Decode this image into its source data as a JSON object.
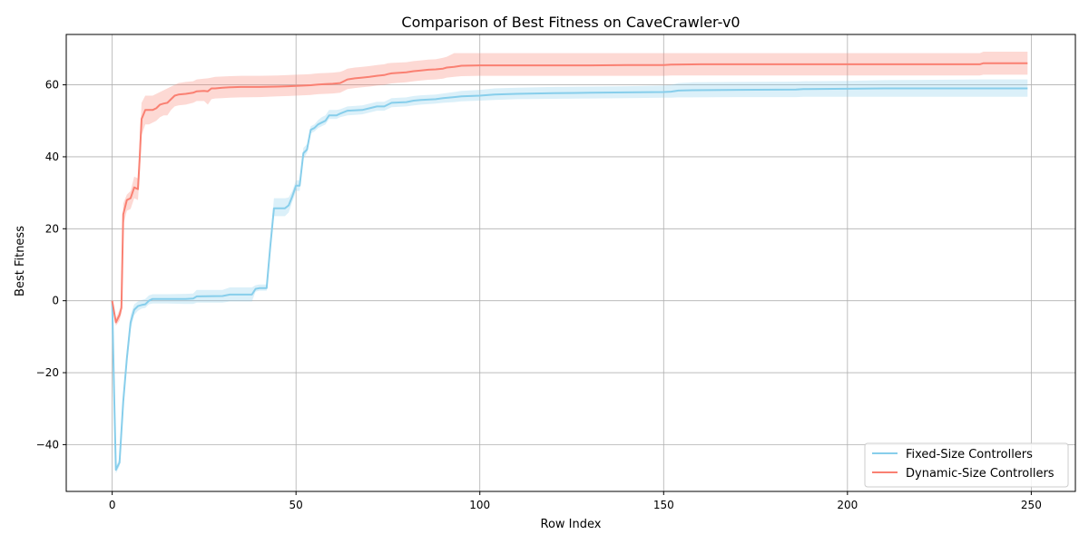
{
  "chart_data": {
    "type": "line",
    "title": "Comparison of Best Fitness on CaveCrawler-v0",
    "xlabel": "Row Index",
    "ylabel": "Best Fitness",
    "xlim": [
      -12.5,
      262
    ],
    "ylim": [
      -53,
      74
    ],
    "xticks": [
      0,
      50,
      100,
      150,
      200,
      250
    ],
    "yticks": [
      -40,
      -20,
      0,
      20,
      40,
      60
    ],
    "grid": true,
    "legend_position": "bottom-right",
    "series": [
      {
        "name": "Fixed-Size Controllers",
        "color": "#87CEEB",
        "x": [
          0,
          0.5,
          1,
          1.5,
          2,
          3,
          4,
          5,
          6,
          7,
          8,
          9,
          10,
          11,
          15,
          20,
          22,
          23,
          30,
          32,
          38,
          39,
          40,
          41,
          42,
          43,
          44,
          45,
          47,
          48,
          49,
          50,
          51,
          52,
          53,
          54,
          55,
          56,
          57,
          58,
          59,
          60,
          61,
          62,
          64,
          68,
          70,
          72,
          74,
          76,
          80,
          82,
          84,
          88,
          90,
          93,
          95,
          100,
          104,
          110,
          120,
          130,
          140,
          150,
          152,
          154,
          158,
          170,
          186,
          188,
          200,
          210,
          236,
          249
        ],
        "mean": [
          0,
          -25,
          -47,
          -46,
          -45,
          -28,
          -16,
          -6,
          -2.5,
          -1.5,
          -1.2,
          -1,
          0,
          0.5,
          0.5,
          0.5,
          0.6,
          1.2,
          1.3,
          1.7,
          1.7,
          3.3,
          3.5,
          3.5,
          3.5,
          15,
          25.7,
          25.7,
          25.7,
          26.5,
          29,
          32,
          32,
          41,
          42,
          47.5,
          48,
          49,
          49.5,
          50,
          51.5,
          51.5,
          51.5,
          52,
          52.8,
          53,
          53.5,
          54,
          54,
          55,
          55.2,
          55.6,
          55.8,
          56,
          56.3,
          56.6,
          56.8,
          57,
          57.3,
          57.5,
          57.7,
          57.8,
          57.9,
          58,
          58.1,
          58.4,
          58.5,
          58.6,
          58.7,
          58.8,
          58.9,
          59,
          59,
          59
        ],
        "lower": [
          0,
          -28,
          -48,
          -47,
          -46,
          -30,
          -18,
          -8,
          -4,
          -2.8,
          -2.2,
          -2,
          -1,
          -0.8,
          -0.8,
          -0.9,
          -0.9,
          -0.5,
          -0.5,
          -0.2,
          -0.2,
          2.5,
          2.8,
          2.8,
          2.8,
          13,
          23.5,
          23.5,
          23.5,
          24.5,
          27.5,
          30.5,
          30.5,
          39.5,
          41,
          46.5,
          47,
          48,
          48.5,
          49,
          50.5,
          50.5,
          50.5,
          51,
          51.5,
          51.8,
          52.3,
          52.8,
          52.8,
          53.8,
          54,
          54.3,
          54.5,
          54.8,
          55,
          55.2,
          55.4,
          55.6,
          55.8,
          56,
          56.1,
          56.2,
          56.3,
          56.4,
          56.4,
          56.5,
          56.5,
          56.6,
          56.6,
          56.7,
          56.7,
          56.7,
          56.7,
          56.7
        ],
        "upper": [
          0,
          -22,
          -46,
          -45,
          -44,
          -26,
          -14,
          -4,
          -1,
          -0.2,
          0.2,
          0.5,
          1.5,
          1.8,
          1.8,
          1.9,
          2,
          3,
          3,
          3.7,
          3.7,
          4.3,
          4.5,
          4.5,
          4.5,
          17,
          28.5,
          28.5,
          28.5,
          28.7,
          30.5,
          33.5,
          33.5,
          42.5,
          43.5,
          48.5,
          49,
          50.2,
          51,
          51.5,
          53,
          53,
          53,
          53.2,
          54,
          54.3,
          54.8,
          55.3,
          55.3,
          56.3,
          56.5,
          56.9,
          57.1,
          57.3,
          57.6,
          58,
          58.3,
          58.6,
          59,
          59.2,
          59.4,
          59.5,
          59.6,
          59.8,
          60,
          60.5,
          60.7,
          60.8,
          60.9,
          61,
          61.1,
          61.3,
          61.5,
          61.5
        ]
      },
      {
        "name": "Dynamic-Size Controllers",
        "color": "#FA8072",
        "x": [
          0,
          1,
          2,
          2.5,
          3,
          4,
          5,
          6,
          7,
          7.5,
          8,
          9,
          10,
          11,
          12,
          13,
          14,
          15,
          16,
          17,
          18,
          20,
          22,
          23,
          25,
          26,
          27,
          28,
          30,
          32,
          35,
          40,
          45,
          48,
          50,
          52,
          54,
          55,
          56,
          58,
          60,
          62,
          63,
          64,
          66,
          68,
          70,
          72,
          74,
          75,
          76,
          80,
          82,
          84,
          86,
          88,
          90,
          91,
          93,
          95,
          100,
          110,
          120,
          130,
          140,
          150,
          152,
          160,
          180,
          200,
          220,
          236,
          237,
          249
        ],
        "mean": [
          0,
          -6,
          -4,
          -2,
          24,
          28,
          28.5,
          31.5,
          31,
          40,
          50.5,
          53,
          53,
          53,
          53.5,
          54.5,
          54.8,
          55,
          56,
          57,
          57.3,
          57.5,
          57.8,
          58.2,
          58.3,
          58.2,
          59,
          59,
          59.2,
          59.3,
          59.4,
          59.4,
          59.5,
          59.6,
          59.7,
          59.8,
          59.9,
          60,
          60.1,
          60.2,
          60.3,
          60.5,
          61,
          61.5,
          61.8,
          62,
          62.2,
          62.5,
          62.7,
          63,
          63.2,
          63.5,
          63.8,
          64,
          64.2,
          64.3,
          64.5,
          64.8,
          65,
          65.3,
          65.4,
          65.4,
          65.4,
          65.4,
          65.5,
          65.5,
          65.6,
          65.7,
          65.7,
          65.7,
          65.7,
          65.7,
          66,
          66
        ],
        "lower": [
          0,
          -7,
          -5.5,
          -3.5,
          21,
          25,
          25.5,
          28.5,
          28,
          35,
          46,
          49,
          49,
          49.5,
          50,
          51,
          51.5,
          51.5,
          53,
          54,
          54.3,
          54.5,
          55,
          55.5,
          55.5,
          54.5,
          56,
          56.2,
          56.3,
          56.4,
          56.5,
          56.6,
          56.8,
          56.9,
          57,
          57.1,
          57.2,
          57.3,
          57.4,
          57.5,
          57.6,
          57.8,
          58.3,
          58.8,
          59.1,
          59.3,
          59.5,
          59.8,
          60,
          60.2,
          60.4,
          60.7,
          61,
          61.2,
          61.4,
          61.5,
          61.7,
          62,
          62.2,
          62.4,
          62.5,
          62.5,
          62.5,
          62.5,
          62.5,
          62.5,
          62.6,
          62.6,
          62.6,
          62.6,
          62.6,
          62.6,
          62.8,
          62.8
        ],
        "upper": [
          0,
          -5,
          -2.5,
          -0.5,
          27,
          29.5,
          30.5,
          34.5,
          34,
          45,
          55,
          57,
          57,
          57,
          57.5,
          58,
          58.5,
          59,
          59.5,
          60,
          60.5,
          60.8,
          61,
          61.5,
          61.7,
          61.8,
          62,
          62.2,
          62.3,
          62.4,
          62.5,
          62.5,
          62.6,
          62.7,
          62.8,
          62.9,
          63,
          63.1,
          63.2,
          63.3,
          63.4,
          63.6,
          64,
          64.5,
          64.8,
          65,
          65.2,
          65.5,
          65.7,
          66,
          66.1,
          66.3,
          66.6,
          66.8,
          67,
          67.1,
          67.5,
          67.8,
          68.8,
          68.8,
          68.8,
          68.8,
          68.8,
          68.8,
          68.8,
          68.8,
          68.8,
          68.8,
          68.8,
          68.8,
          68.8,
          68.8,
          69.2,
          69.2
        ]
      }
    ]
  }
}
